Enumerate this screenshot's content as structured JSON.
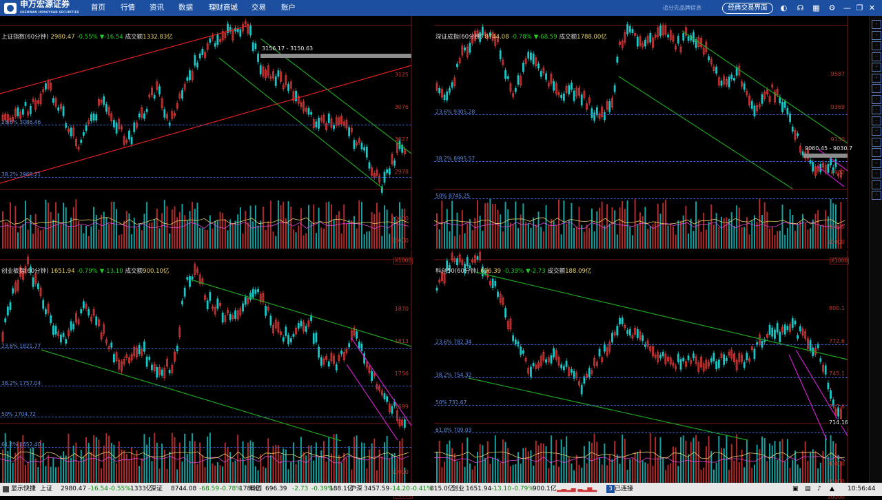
{
  "topbar": {
    "logo_text": "申万宏源证券",
    "logo_sub": "SHENWAN HONGYUAN SECURITIES",
    "nav": [
      "首页",
      "行情",
      "资讯",
      "数据",
      "理财商城",
      "交易",
      "账户"
    ],
    "slogan": "追分先品牌信息",
    "classic_button": "经典交易界面",
    "icons": [
      "refresh-icon",
      "headset-icon",
      "grid-icon",
      "gear-icon",
      "minimize-icon",
      "restore-icon",
      "close-icon"
    ]
  },
  "panels": [
    {
      "name": "上证指数(60分钟)",
      "value": "2980.47",
      "change": "-0.55%",
      "change_pts": "▼-16.54",
      "volume_label": "成交额",
      "volume": "1332.83亿",
      "yticks": [
        "3125",
        "3076",
        "3027",
        "2978"
      ],
      "fibs": [
        {
          "label": "23.6% 3086.46"
        },
        {
          "label": "38.2% 2968.21"
        }
      ],
      "volume_ticks": [
        "20000",
        "10000"
      ],
      "vol_unit": "X1000",
      "price_box": {
        "label": "3156.17 - 3150.63"
      },
      "price_label": ""
    },
    {
      "name": "深证成指(60分钟)",
      "value": "8744.08",
      "change": "-0.78%",
      "change_pts": "▼-68.59",
      "volume_label": "成交额",
      "volume": "1788.00亿",
      "yticks": [
        "9587",
        "9369",
        "9150",
        "8932"
      ],
      "fibs": [
        {
          "label": "23.6% 9305.28"
        },
        {
          "label": "38.2% 8995.57"
        },
        {
          "label": "50% 8745.25"
        }
      ],
      "volume_ticks": [
        "20000",
        "10000"
      ],
      "vol_unit": "X1000",
      "price_box": {
        "label": "9060.45 - 9030.7"
      },
      "price_label": ""
    },
    {
      "name": "创业板指(60分钟)",
      "value": "1651.94",
      "change": "-0.79%",
      "change_pts": "▼-13.10",
      "volume_label": "成交额",
      "volume": "900.10亿",
      "yticks": [
        "1870",
        "1813",
        "1756",
        "1699"
      ],
      "fibs": [
        {
          "label": "23.6% 1821.77"
        },
        {
          "label": "38.2% 1757.04"
        },
        {
          "label": "50% 1704.72"
        },
        {
          "label": "61.8% 1652.40"
        }
      ],
      "volume_ticks": [
        "10000",
        "5000"
      ],
      "vol_unit": "X1000",
      "price_box": null,
      "price_label": ""
    },
    {
      "name": "科创50(60分钟)",
      "value": "696.39",
      "change": "-0.39%",
      "change_pts": "▼-2.73",
      "volume_label": "成交额",
      "volume": "188.09亿",
      "yticks": [
        "800.1",
        "772.6",
        "745.1",
        "717.6"
      ],
      "fibs": [
        {
          "label": "23.6% 782.34"
        },
        {
          "label": "38.2% 754.32"
        },
        {
          "label": "50% 731.67"
        },
        {
          "label": "61.8% 709.03"
        }
      ],
      "volume_ticks": [
        "30000",
        "20000",
        "10000"
      ],
      "vol_unit": "",
      "price_box": null,
      "price_label": "714.16"
    }
  ],
  "statusbar": {
    "quick_label": "显示快捷",
    "items": [
      {
        "name": "上证",
        "price": "2980.47",
        "pts": "-16.54",
        "pct": "-0.55%",
        "vol": "1333亿"
      },
      {
        "name": "深证",
        "price": "8744.08",
        "pts": "-68.59",
        "pct": "-0.78%",
        "vol": "1788亿"
      },
      {
        "name": "科创",
        "price": "696.39",
        "pts": "-2.73",
        "pct": "-0.39%",
        "vol": "188.1亿"
      },
      {
        "name": "沪深",
        "price": "3457.59",
        "pts": "-14.20",
        "pct": "-0.41%",
        "vol": "815.0亿"
      },
      {
        "name": "创业",
        "price": "1651.94",
        "pts": "-13.10",
        "pct": "-0.79%",
        "vol": "900.1亿"
      }
    ],
    "badge": "3",
    "connection": "已连接",
    "time": "10:56:44"
  },
  "colors": {
    "up": "#e33b3b",
    "down": "#19c7c7",
    "top": "#1c4fa0",
    "fib": "#3a62c9"
  }
}
